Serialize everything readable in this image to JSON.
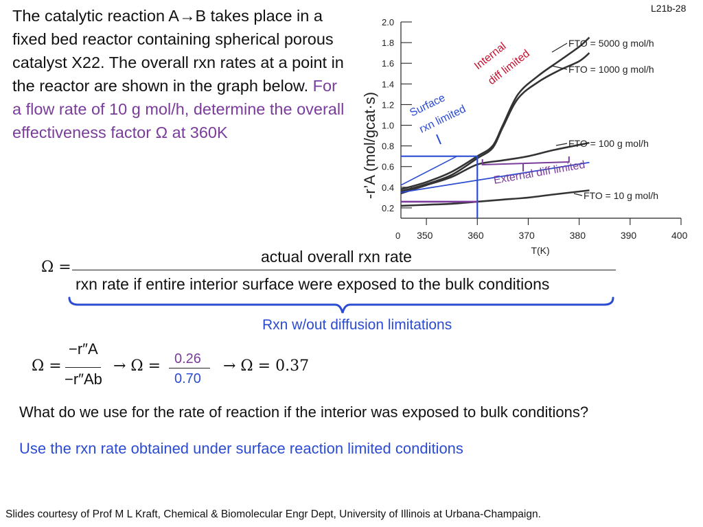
{
  "slide_id": "L21b-28",
  "problem": {
    "text": "The catalytic reaction A→B takes place in a fixed bed reactor containing spherical porous catalyst X22. The overall rxn rates at a point in the reactor are shown in the graph below.",
    "question": "For a flow rate of 10 g mol/h, determine the overall effectiveness factor Ω at 360K"
  },
  "formula1": {
    "lhs": "Ω =",
    "numerator": "actual overall rxn rate",
    "denominator": "rxn rate if entire interior surface were exposed to the bulk conditions",
    "brace_label": "Rxn w/out diffusion limitations"
  },
  "formula2": {
    "lhs": "Ω =",
    "num_sym": "−r″A",
    "den_sym": "−r″Ab",
    "arrow1": "→ Ω =",
    "num_val": "0.26",
    "den_val": "0.70",
    "arrow2": "→ Ω = 0.37"
  },
  "question2": "What do we use for the rate of reaction if the interior was exposed to bulk conditions?",
  "answer2": "Use the rxn rate obtained under surface reaction limited conditions",
  "footer": "Slides courtesy of Prof M L Kraft, Chemical & Biomolecular Engr Dept, University of Illinois at Urbana-Champaign.",
  "colors": {
    "purple": "#7a3c9a",
    "blue": "#2a4bd2",
    "red": "#c8102e"
  },
  "chart_data": {
    "type": "line",
    "xlabel": "T(K)",
    "ylabel": "-r’A (mol/gcat·s)",
    "xlim": [
      345,
      400
    ],
    "ylim": [
      0.1,
      2.0
    ],
    "x_ticks": [
      "350",
      "360",
      "370",
      "380",
      "390",
      "400"
    ],
    "y_ticks": [
      "0.2",
      "0.4",
      "0.6",
      "0.8",
      "1.0",
      "1.2",
      "1.4",
      "1.6",
      "1.8",
      "2.0"
    ],
    "x_extra_label": "0",
    "series": [
      {
        "name": "FTO = 5000 g mol/h",
        "points": [
          [
            345,
            0.38
          ],
          [
            350,
            0.45
          ],
          [
            355,
            0.55
          ],
          [
            360,
            0.7
          ],
          [
            363,
            0.8
          ],
          [
            365,
            1.0
          ],
          [
            368,
            1.3
          ],
          [
            372,
            1.48
          ],
          [
            376,
            1.62
          ],
          [
            380,
            1.76
          ],
          [
            382,
            1.85
          ]
        ]
      },
      {
        "name": "FTO = 1000 g mol/h",
        "points": [
          [
            345,
            0.36
          ],
          [
            350,
            0.43
          ],
          [
            355,
            0.52
          ],
          [
            360,
            0.68
          ],
          [
            363,
            0.78
          ],
          [
            365,
            0.98
          ],
          [
            368,
            1.26
          ],
          [
            372,
            1.42
          ],
          [
            376,
            1.53
          ],
          [
            380,
            1.62
          ],
          [
            382,
            1.7
          ]
        ]
      },
      {
        "name": "FTO = 100 g mol/h",
        "points": [
          [
            345,
            0.34
          ],
          [
            350,
            0.42
          ],
          [
            355,
            0.5
          ],
          [
            360,
            0.62
          ],
          [
            365,
            0.66
          ],
          [
            370,
            0.7
          ],
          [
            375,
            0.76
          ],
          [
            382,
            0.83
          ]
        ]
      },
      {
        "name": "FTO = 10 g mol/h",
        "points": [
          [
            345,
            0.22
          ],
          [
            350,
            0.23
          ],
          [
            355,
            0.24
          ],
          [
            360,
            0.26
          ],
          [
            365,
            0.28
          ],
          [
            370,
            0.3
          ],
          [
            375,
            0.33
          ],
          [
            382,
            0.37
          ]
        ]
      }
    ],
    "annotations": {
      "internal": "Internal diff limited",
      "surface": "Surface rxn limited",
      "external": "External diff limited"
    },
    "marked_points": [
      {
        "T": 360,
        "rate": 0.7
      },
      {
        "T": 360,
        "rate": 0.26
      }
    ]
  }
}
